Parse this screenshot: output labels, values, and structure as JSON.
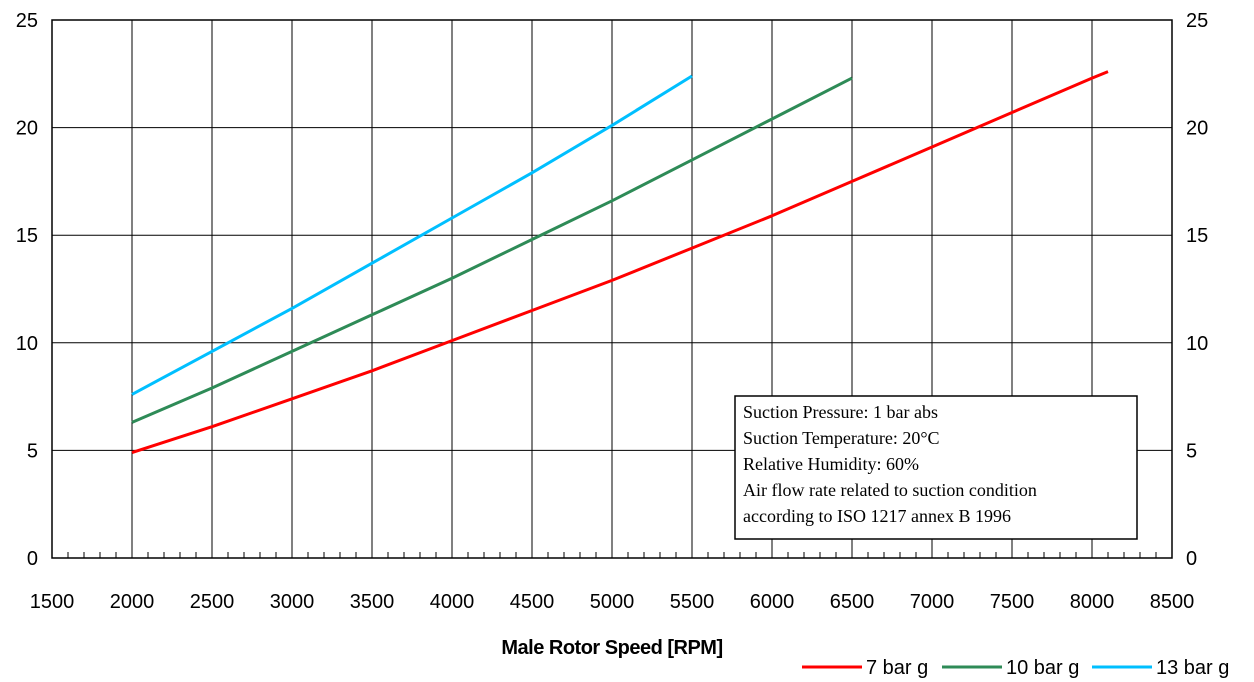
{
  "chart_data": {
    "type": "line",
    "title": "",
    "xlabel": "Male Rotor Speed [RPM]",
    "ylabel": "",
    "xlim": [
      1500,
      8500
    ],
    "ylim": [
      0,
      25
    ],
    "x_ticks": [
      1500,
      2000,
      2500,
      3000,
      3500,
      4000,
      4500,
      5000,
      5500,
      6000,
      6500,
      7000,
      7500,
      8000,
      8500
    ],
    "y_ticks": [
      0,
      5,
      10,
      15,
      20,
      25
    ],
    "x_minor_step": 100,
    "y_axis_right_mirrored": true,
    "grid": true,
    "legend_position": "bottom-right",
    "series": [
      {
        "name": "7 bar g",
        "color": "#ff0000",
        "x": [
          2000,
          2500,
          3000,
          3500,
          4000,
          4500,
          5000,
          5500,
          6000,
          6500,
          7000,
          7500,
          8000,
          8100
        ],
        "values": [
          4.9,
          6.1,
          7.4,
          8.7,
          10.1,
          11.5,
          12.9,
          14.4,
          15.9,
          17.5,
          19.1,
          20.7,
          22.3,
          22.6
        ]
      },
      {
        "name": "10 bar g",
        "color": "#2e8b57",
        "x": [
          2000,
          2500,
          3000,
          3500,
          4000,
          4500,
          5000,
          5500,
          6000,
          6500
        ],
        "values": [
          6.3,
          7.9,
          9.6,
          11.3,
          13.0,
          14.8,
          16.6,
          18.5,
          20.4,
          22.3
        ]
      },
      {
        "name": "13 bar g",
        "color": "#00bfff",
        "x": [
          2000,
          2500,
          3000,
          3500,
          4000,
          4500,
          5000,
          5500
        ],
        "values": [
          7.6,
          9.6,
          11.6,
          13.7,
          15.8,
          17.9,
          20.1,
          22.4
        ]
      }
    ],
    "annotation_lines": [
      "Suction Pressure: 1 bar abs",
      "Suction Temperature:  20°C",
      "Relative Humidity: 60%",
      "Air flow rate related to suction condition",
      "according to ISO 1217 annex B 1996"
    ]
  }
}
